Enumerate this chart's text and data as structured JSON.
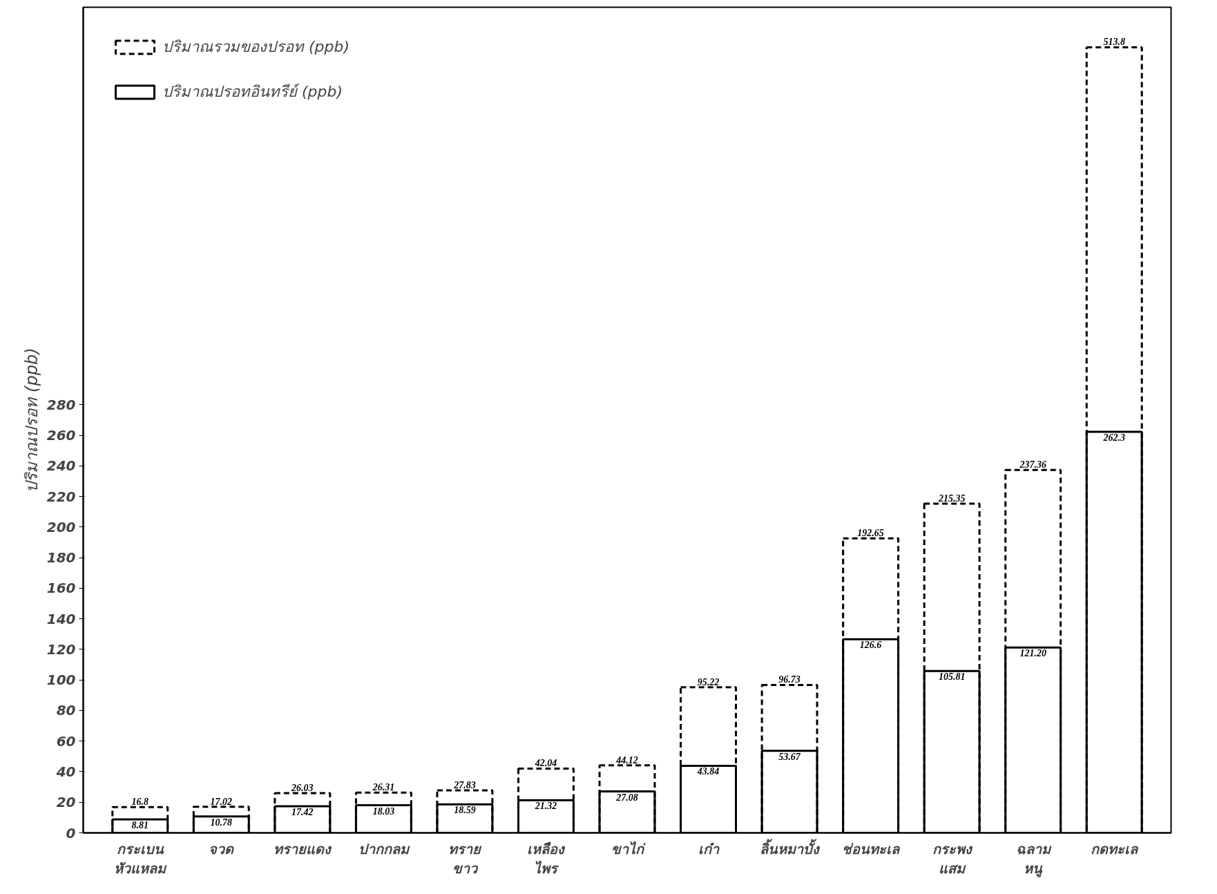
{
  "chart_data": {
    "type": "bar",
    "ylabel": "ปริมาณปรอท (ppb)",
    "categories": [
      "กระเบน\nหัวแหลม",
      "จวด",
      "ทรายแดง",
      "ปากกลม",
      "ทราย\nขาว",
      "เหลือง\nไพร",
      "ขาไก่",
      "เก๋า",
      "ลิ้นหมาบั้ง",
      "ช่อนทะเล",
      "กระพง\nแสม",
      "ฉลาม\nหนู",
      "กดทะเล"
    ],
    "series": [
      {
        "name": "ปริมาณรวมของปรอท (ppb)",
        "color": "#000000",
        "line_style": "dashed",
        "values": [
          16.8,
          17.02,
          26.03,
          26.31,
          27.83,
          42.04,
          44.12,
          95.22,
          96.73,
          192.65,
          215.35,
          237.36,
          513.8
        ],
        "value_labels": [
          "16.8",
          "17.02",
          "26.03",
          "26.31",
          "27.83",
          "42.04",
          "44.12",
          "95.22",
          "96.73",
          "192.65",
          "215.35",
          "237.36",
          "513.8"
        ]
      },
      {
        "name": "ปริมาณปรอทอินทรีย์ (ppb)",
        "color": "#000000",
        "line_style": "solid",
        "values": [
          8.81,
          10.78,
          17.42,
          18.03,
          18.59,
          21.32,
          27.08,
          43.84,
          53.67,
          126.6,
          105.81,
          121.2,
          262.3
        ],
        "value_labels": [
          "8.81",
          "10.78",
          "17.42",
          "18.03",
          "18.59",
          "21.32",
          "27.08",
          "43.84",
          "53.67",
          "126.6",
          "105.81",
          "121.20",
          "262.3"
        ]
      }
    ],
    "ylim": [
      0,
      540
    ],
    "yticks": [
      0,
      20,
      40,
      60,
      80,
      100,
      120,
      140,
      160,
      180,
      200,
      220,
      240,
      260,
      280
    ],
    "grid": false,
    "legend": "top left"
  }
}
